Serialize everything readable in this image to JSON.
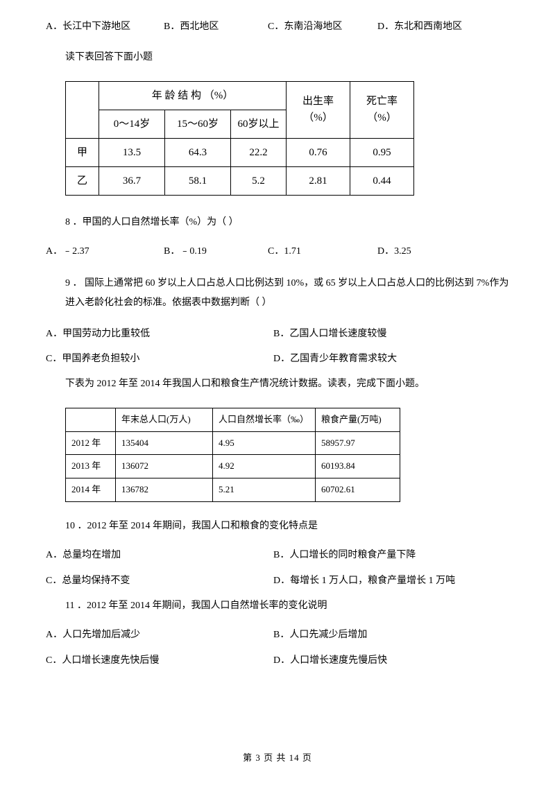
{
  "top_options": {
    "a": "A．长江中下游地区",
    "b": "B．西北地区",
    "c": "C．东南沿海地区",
    "d": "D．东北和西南地区"
  },
  "instruction1": "读下表回答下面小题",
  "table1": {
    "hdr_age": "年 龄 结 构 （%）",
    "hdr_birth": "出生率",
    "hdr_birth2": "（%）",
    "hdr_death": "死亡率",
    "hdr_death2": "（%）",
    "sub0": "0～14岁",
    "sub1": "15～60岁",
    "sub2": "60岁以上",
    "row1_lbl": "甲",
    "row1": [
      "13.5",
      "64.3",
      "22.2",
      "0.76",
      "0.95"
    ],
    "row2_lbl": "乙",
    "row2": [
      "36.7",
      "58.1",
      "5.2",
      "2.81",
      "0.44"
    ]
  },
  "q8": "8 ．甲国的人口自然增长率（%）为（   ）",
  "q8_opts": {
    "a": "A．﹣2.37",
    "b": "B．﹣0.19",
    "c": "C．1.71",
    "d": "D．3.25"
  },
  "q9": "9 ． 国际上通常把 60 岁以上人口占总人口比例达到 10%，或 65 岁以上人口占总人口的比例达到 7%作为进入老龄化社会的标准。依据表中数据判断（   ）",
  "q9_opts": {
    "a": "A．甲国劳动力比重较低",
    "b": "B．乙国人口增长速度较慢",
    "c": "C．甲国养老负担较小",
    "d": "D．乙国青少年教育需求较大"
  },
  "instruction2": "下表为 2012 年至 2014 年我国人口和粮食生产情况统计数据。读表，完成下面小题。",
  "table2": {
    "h0": "",
    "h1": "年末总人口(万人)",
    "h2": "人口自然增长率（‰）",
    "h3": "粮食产量(万吨)",
    "rows": [
      [
        "2012 年",
        "135404",
        "4.95",
        "58957.97"
      ],
      [
        "2013 年",
        "136072",
        "4.92",
        "60193.84"
      ],
      [
        "2014 年",
        "136782",
        "5.21",
        "60702.61"
      ]
    ]
  },
  "q10": "10 ．2012 年至 2014 年期间，我国人口和粮食的变化特点是",
  "q10_opts": {
    "a": "A．总量均在增加",
    "b": "B．人口增长的同时粮食产量下降",
    "c": "C．总量均保持不变",
    "d": "D．每增长 1 万人口，粮食产量增长 1 万吨"
  },
  "q11": "11 ．2012 年至 2014 年期间，我国人口自然增长率的变化说明",
  "q11_opts": {
    "a": "A．人口先增加后减少",
    "b": "B．人口先减少后增加",
    "c": "C．人口增长速度先快后慢",
    "d": "D．人口增长速度先慢后快"
  },
  "footer": "第 3 页 共 14 页"
}
